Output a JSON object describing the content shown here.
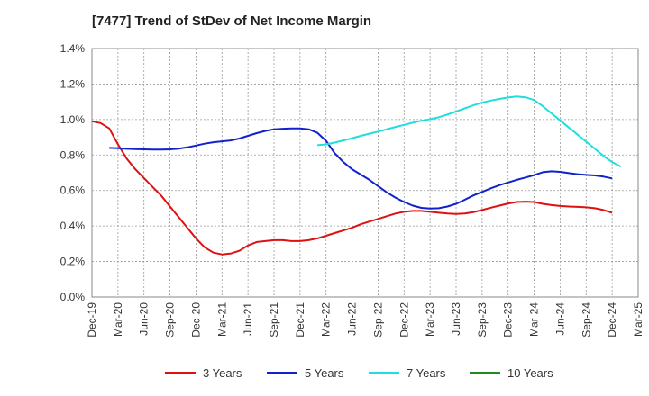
{
  "chart_data": {
    "type": "line",
    "title": "[7477]  Trend of StDev of Net Income Margin",
    "xlabel": "",
    "ylabel": "",
    "ylim": [
      0,
      1.4
    ],
    "y_ticks": [
      "0.0%",
      "0.2%",
      "0.4%",
      "0.6%",
      "0.8%",
      "1.0%",
      "1.2%",
      "1.4%"
    ],
    "y_tick_values": [
      0,
      0.2,
      0.4,
      0.6,
      0.8,
      1.0,
      1.2,
      1.4
    ],
    "x_ticks": [
      "Dec-19",
      "Mar-20",
      "Jun-20",
      "Sep-20",
      "Dec-20",
      "Mar-21",
      "Jun-21",
      "Sep-21",
      "Dec-21",
      "Mar-22",
      "Jun-22",
      "Sep-22",
      "Dec-22",
      "Mar-23",
      "Jun-23",
      "Sep-23",
      "Dec-23",
      "Mar-24",
      "Jun-24",
      "Sep-24",
      "Dec-24",
      "Mar-25"
    ],
    "grid": true,
    "legend_position": "bottom",
    "series": [
      {
        "name": "3 Years",
        "color": "#dd1111",
        "points": [
          [
            "Dec-19",
            0.99
          ],
          [
            "Jan-20",
            0.98
          ],
          [
            "Feb-20",
            0.95
          ],
          [
            "Mar-20",
            0.86
          ],
          [
            "Apr-20",
            0.78
          ],
          [
            "May-20",
            0.72
          ],
          [
            "Jun-20",
            0.67
          ],
          [
            "Jul-20",
            0.62
          ],
          [
            "Aug-20",
            0.57
          ],
          [
            "Sep-20",
            0.51
          ],
          [
            "Oct-20",
            0.45
          ],
          [
            "Nov-20",
            0.39
          ],
          [
            "Dec-20",
            0.33
          ],
          [
            "Jan-21",
            0.28
          ],
          [
            "Feb-21",
            0.25
          ],
          [
            "Mar-21",
            0.24
          ],
          [
            "Apr-21",
            0.245
          ],
          [
            "May-21",
            0.26
          ],
          [
            "Jun-21",
            0.29
          ],
          [
            "Jul-21",
            0.31
          ],
          [
            "Aug-21",
            0.315
          ],
          [
            "Sep-21",
            0.32
          ],
          [
            "Oct-21",
            0.32
          ],
          [
            "Nov-21",
            0.315
          ],
          [
            "Dec-21",
            0.315
          ],
          [
            "Jan-22",
            0.32
          ],
          [
            "Feb-22",
            0.33
          ],
          [
            "Mar-22",
            0.345
          ],
          [
            "Apr-22",
            0.36
          ],
          [
            "May-22",
            0.375
          ],
          [
            "Jun-22",
            0.39
          ],
          [
            "Jul-22",
            0.41
          ],
          [
            "Aug-22",
            0.425
          ],
          [
            "Sep-22",
            0.44
          ],
          [
            "Oct-22",
            0.455
          ],
          [
            "Nov-22",
            0.47
          ],
          [
            "Dec-22",
            0.48
          ],
          [
            "Jan-23",
            0.485
          ],
          [
            "Feb-23",
            0.485
          ],
          [
            "Mar-23",
            0.48
          ],
          [
            "Apr-23",
            0.475
          ],
          [
            "May-23",
            0.47
          ],
          [
            "Jun-23",
            0.468
          ],
          [
            "Jul-23",
            0.47
          ],
          [
            "Aug-23",
            0.478
          ],
          [
            "Sep-23",
            0.49
          ],
          [
            "Oct-23",
            0.503
          ],
          [
            "Nov-23",
            0.515
          ],
          [
            "Dec-23",
            0.527
          ],
          [
            "Jan-24",
            0.535
          ],
          [
            "Feb-24",
            0.537
          ],
          [
            "Mar-24",
            0.535
          ],
          [
            "Apr-24",
            0.525
          ],
          [
            "May-24",
            0.518
          ],
          [
            "Jun-24",
            0.513
          ],
          [
            "Jul-24",
            0.51
          ],
          [
            "Aug-24",
            0.508
          ],
          [
            "Sep-24",
            0.505
          ],
          [
            "Oct-24",
            0.5
          ],
          [
            "Nov-24",
            0.49
          ],
          [
            "Dec-24",
            0.475
          ]
        ]
      },
      {
        "name": "5 Years",
        "color": "#1122cc",
        "points": [
          [
            "Feb-20",
            0.84
          ],
          [
            "Mar-20",
            0.838
          ],
          [
            "Apr-20",
            0.835
          ],
          [
            "May-20",
            0.833
          ],
          [
            "Jun-20",
            0.832
          ],
          [
            "Jul-20",
            0.831
          ],
          [
            "Aug-20",
            0.831
          ],
          [
            "Sep-20",
            0.832
          ],
          [
            "Oct-20",
            0.836
          ],
          [
            "Nov-20",
            0.843
          ],
          [
            "Dec-20",
            0.853
          ],
          [
            "Jan-21",
            0.864
          ],
          [
            "Feb-21",
            0.872
          ],
          [
            "Mar-21",
            0.877
          ],
          [
            "Apr-21",
            0.882
          ],
          [
            "May-21",
            0.893
          ],
          [
            "Jun-21",
            0.908
          ],
          [
            "Jul-21",
            0.923
          ],
          [
            "Aug-21",
            0.936
          ],
          [
            "Sep-21",
            0.945
          ],
          [
            "Oct-21",
            0.948
          ],
          [
            "Nov-21",
            0.95
          ],
          [
            "Dec-21",
            0.95
          ],
          [
            "Jan-22",
            0.945
          ],
          [
            "Feb-22",
            0.925
          ],
          [
            "Mar-22",
            0.88
          ],
          [
            "Apr-22",
            0.81
          ],
          [
            "May-22",
            0.76
          ],
          [
            "Jun-22",
            0.72
          ],
          [
            "Jul-22",
            0.69
          ],
          [
            "Aug-22",
            0.66
          ],
          [
            "Sep-22",
            0.625
          ],
          [
            "Oct-22",
            0.59
          ],
          [
            "Nov-22",
            0.56
          ],
          [
            "Dec-22",
            0.535
          ],
          [
            "Jan-23",
            0.515
          ],
          [
            "Feb-23",
            0.502
          ],
          [
            "Mar-23",
            0.498
          ],
          [
            "Apr-23",
            0.5
          ],
          [
            "May-23",
            0.51
          ],
          [
            "Jun-23",
            0.525
          ],
          [
            "Jul-23",
            0.548
          ],
          [
            "Aug-23",
            0.572
          ],
          [
            "Sep-23",
            0.592
          ],
          [
            "Oct-23",
            0.612
          ],
          [
            "Nov-23",
            0.63
          ],
          [
            "Dec-23",
            0.645
          ],
          [
            "Jan-24",
            0.66
          ],
          [
            "Feb-24",
            0.673
          ],
          [
            "Mar-24",
            0.687
          ],
          [
            "Apr-24",
            0.703
          ],
          [
            "May-24",
            0.708
          ],
          [
            "Jun-24",
            0.705
          ],
          [
            "Jul-24",
            0.698
          ],
          [
            "Aug-24",
            0.692
          ],
          [
            "Sep-24",
            0.688
          ],
          [
            "Oct-24",
            0.685
          ],
          [
            "Nov-24",
            0.678
          ],
          [
            "Dec-24",
            0.668
          ]
        ]
      },
      {
        "name": "7 Years",
        "color": "#22dddd",
        "points": [
          [
            "Feb-22",
            0.855
          ],
          [
            "Mar-22",
            0.86
          ],
          [
            "Apr-22",
            0.87
          ],
          [
            "May-22",
            0.882
          ],
          [
            "Jun-22",
            0.895
          ],
          [
            "Jul-22",
            0.908
          ],
          [
            "Aug-22",
            0.92
          ],
          [
            "Sep-22",
            0.932
          ],
          [
            "Oct-22",
            0.945
          ],
          [
            "Nov-22",
            0.958
          ],
          [
            "Dec-22",
            0.97
          ],
          [
            "Jan-23",
            0.982
          ],
          [
            "Feb-23",
            0.993
          ],
          [
            "Mar-23",
            1.002
          ],
          [
            "Apr-23",
            1.013
          ],
          [
            "May-23",
            1.028
          ],
          [
            "Jun-23",
            1.045
          ],
          [
            "Jul-23",
            1.063
          ],
          [
            "Aug-23",
            1.08
          ],
          [
            "Sep-23",
            1.095
          ],
          [
            "Oct-23",
            1.107
          ],
          [
            "Nov-23",
            1.116
          ],
          [
            "Dec-23",
            1.124
          ],
          [
            "Jan-24",
            1.13
          ],
          [
            "Feb-24",
            1.125
          ],
          [
            "Mar-24",
            1.11
          ],
          [
            "Apr-24",
            1.075
          ],
          [
            "May-24",
            1.035
          ],
          [
            "Jun-24",
            0.995
          ],
          [
            "Jul-24",
            0.955
          ],
          [
            "Aug-24",
            0.915
          ],
          [
            "Sep-24",
            0.875
          ],
          [
            "Oct-24",
            0.835
          ],
          [
            "Nov-24",
            0.795
          ],
          [
            "Dec-24",
            0.76
          ],
          [
            "Jan-25",
            0.735
          ]
        ]
      },
      {
        "name": "10 Years",
        "color": "#228822",
        "points": []
      }
    ]
  }
}
